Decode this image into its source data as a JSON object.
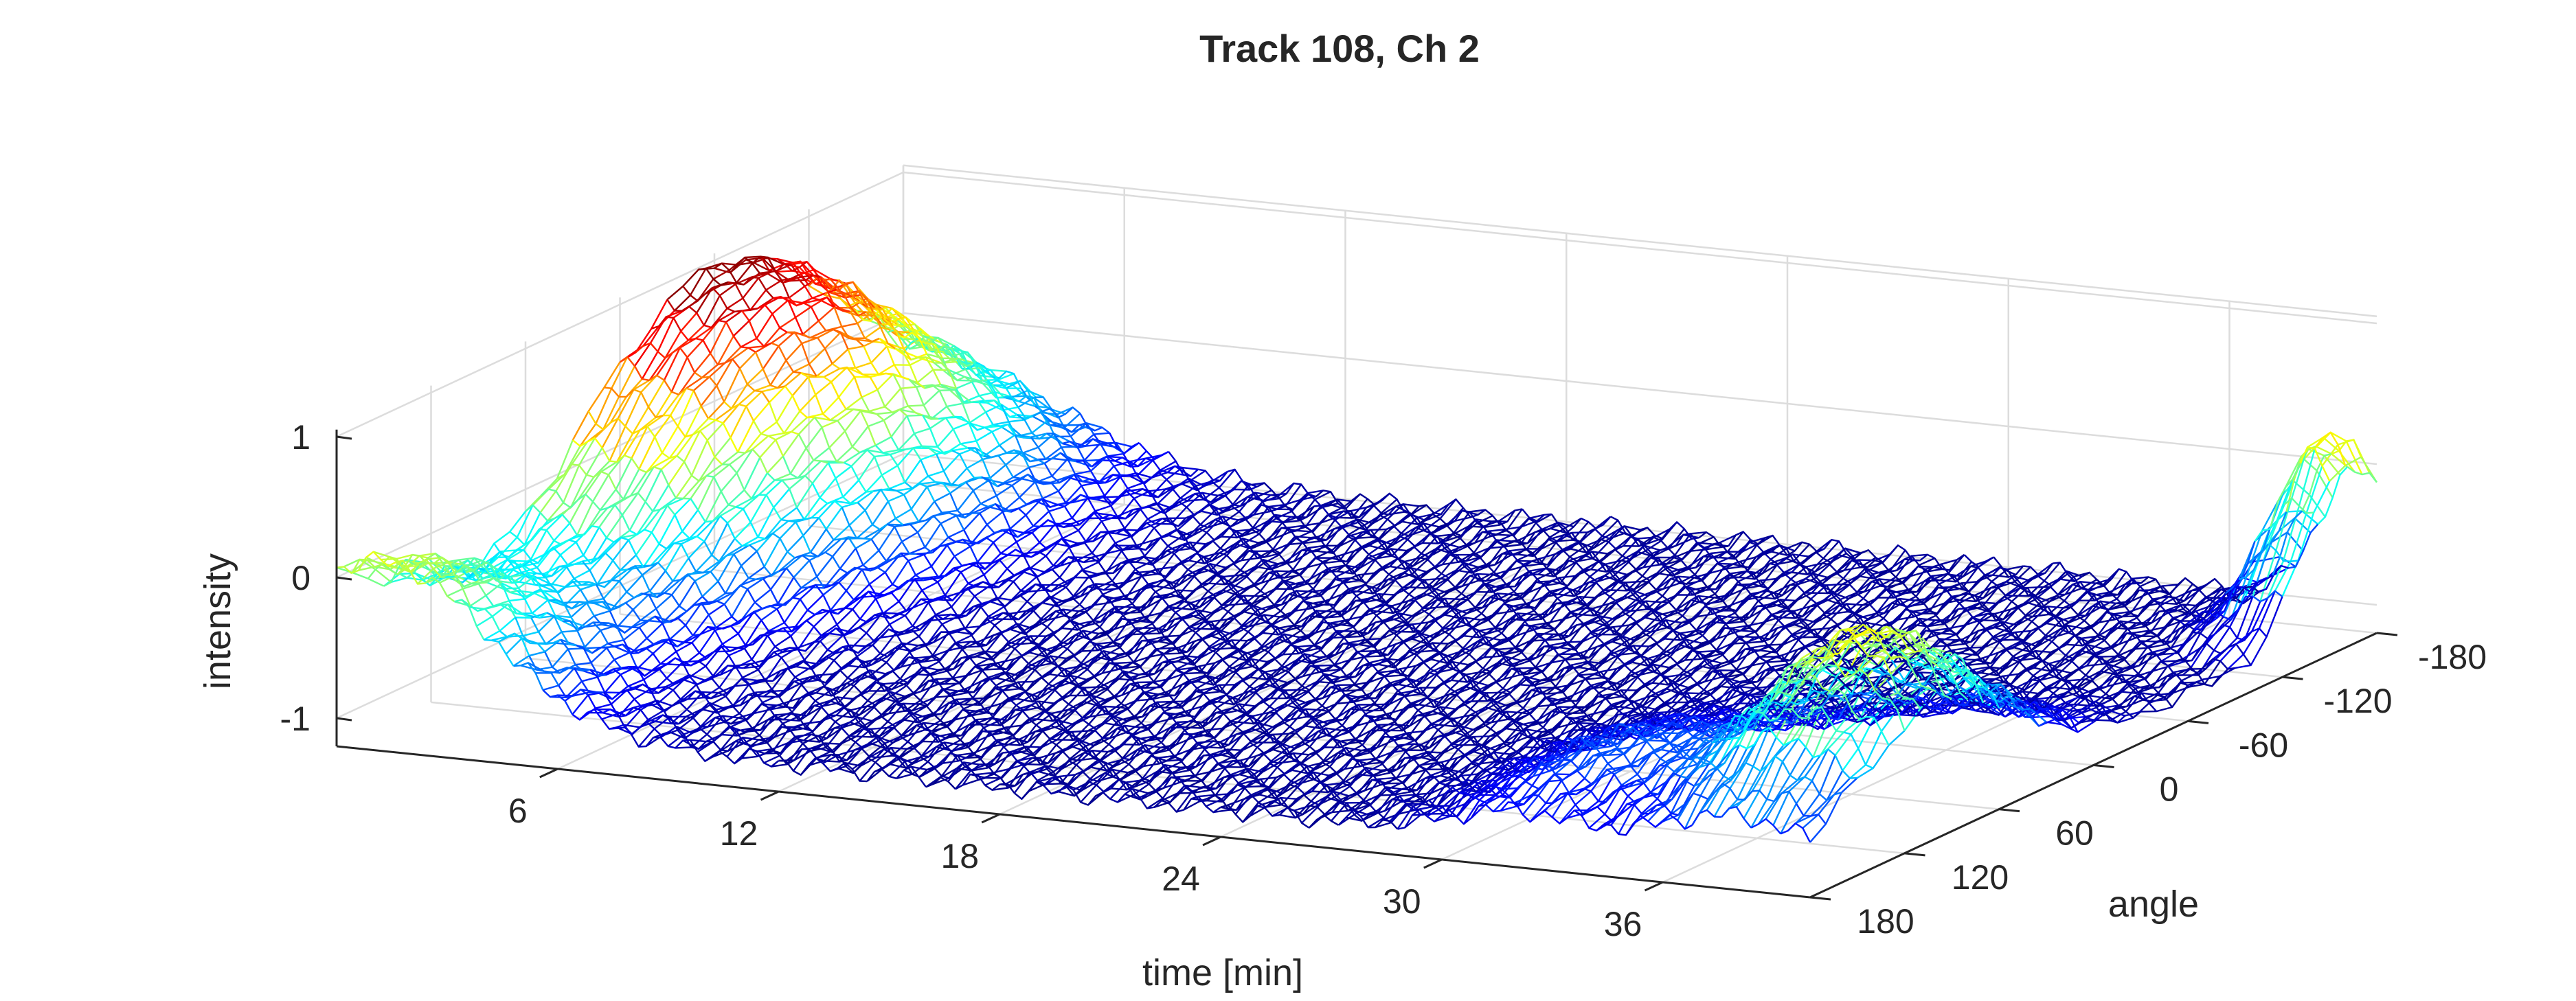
{
  "chart_data": {
    "type": "surface-mesh",
    "title": "Track 108, Ch 2",
    "xlabel": "time [min]",
    "ylabel": "angle",
    "zlabel": "intensity",
    "x_ticks": [
      "6",
      "12",
      "18",
      "24",
      "30",
      "36"
    ],
    "x_tick_values": [
      6,
      12,
      18,
      24,
      30,
      36
    ],
    "y_ticks": [
      "-180",
      "-120",
      "-60",
      "0",
      "60",
      "120",
      "180"
    ],
    "y_tick_values": [
      -180,
      -120,
      -60,
      0,
      60,
      120,
      180
    ],
    "z_ticks": [
      "-1",
      "0",
      "1"
    ],
    "z_tick_values": [
      -1,
      0,
      1
    ],
    "xlim": [
      0,
      40
    ],
    "ylim": [
      -180,
      180
    ],
    "zlim": [
      -1.2,
      1
    ],
    "colormap": "jet",
    "grid": true,
    "features": [
      {
        "region": "early time, angles -180 to 180",
        "time_range": [
          0,
          6
        ],
        "peak_intensity": 0.95
      },
      {
        "region": "late time band near angle 60 to 180",
        "time_range": [
          33,
          40
        ],
        "peak_intensity": 0.45
      },
      {
        "region": "late time peak near angle -180",
        "time_range": [
          37,
          40
        ],
        "peak_intensity": 0.9
      }
    ],
    "baseline_intensity": -1.0
  }
}
